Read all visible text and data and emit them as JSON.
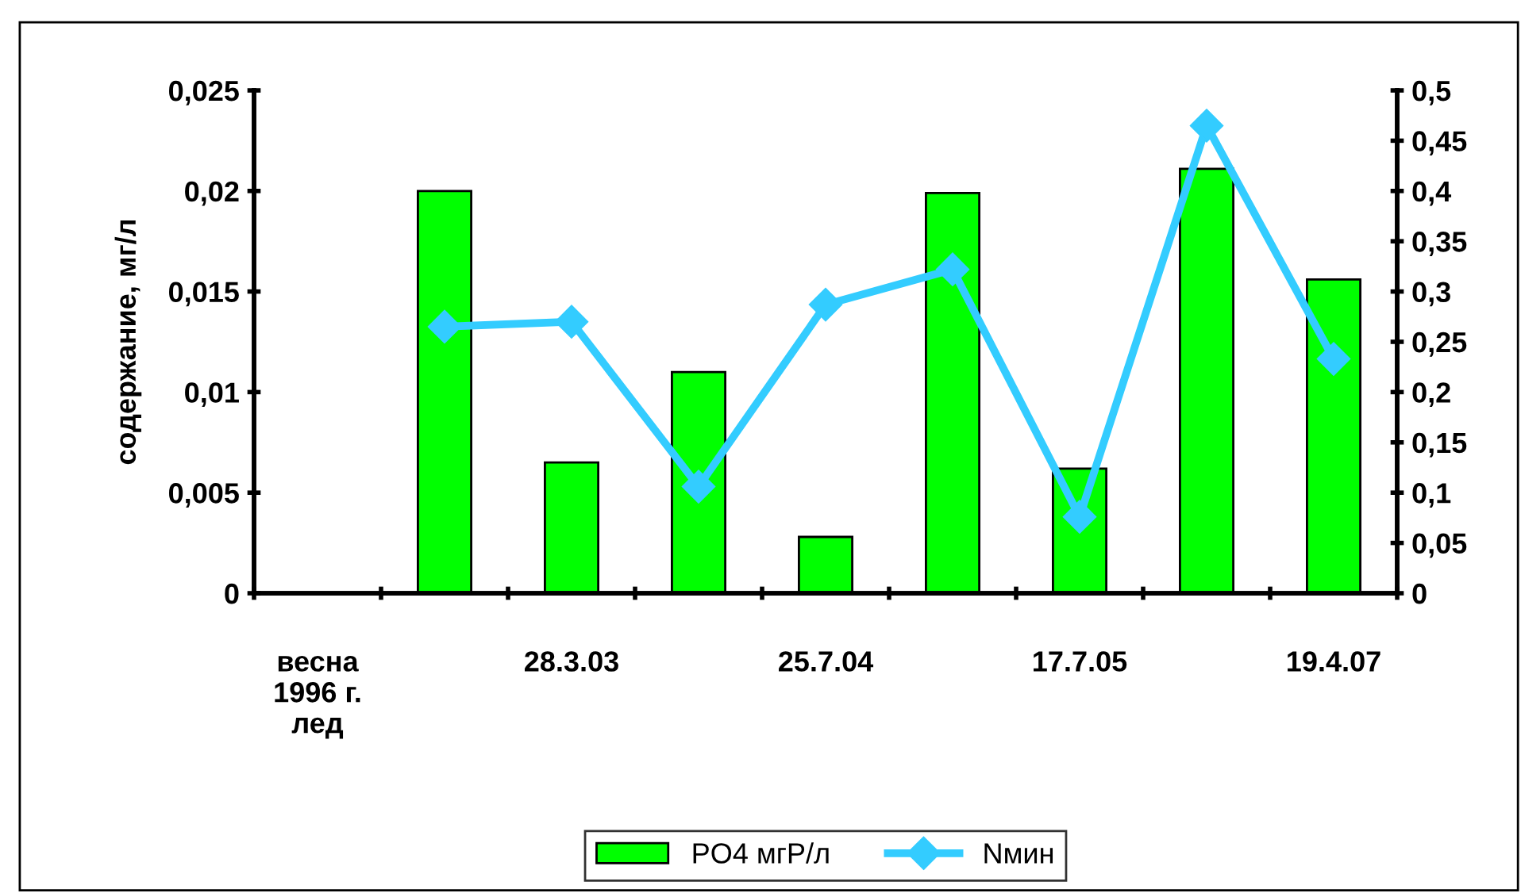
{
  "chart_data": {
    "type": "bar",
    "ylabel": "содержание, мг/л",
    "categories": [
      "весна\n1996 г.\nлед",
      null,
      "28.3.03",
      null,
      "25.7.04",
      null,
      "17.7.05",
      null,
      "19.4.07"
    ],
    "series": [
      {
        "name": "PO4 мгР/л",
        "color": "#00ff00",
        "values": [
          null,
          0.02,
          0.0065,
          0.011,
          0.0028,
          0.0199,
          0.0062,
          0.0211,
          0.0156
        ]
      },
      {
        "name": "Nмин",
        "type": "line",
        "axis": "y2",
        "color": "#33ccff",
        "values": [
          null,
          0.265,
          0.27,
          0.106,
          0.287,
          0.322,
          0.076,
          0.465,
          0.233
        ]
      }
    ],
    "ylim": [
      0,
      0.025
    ],
    "yticks": [
      {
        "value": 0,
        "label": "0"
      },
      {
        "value": 0.005,
        "label": "0,005"
      },
      {
        "value": 0.01,
        "label": "0,01"
      },
      {
        "value": 0.015,
        "label": "0,015"
      },
      {
        "value": 0.02,
        "label": "0,02"
      },
      {
        "value": 0.025,
        "label": "0,025"
      }
    ],
    "y2lim": [
      0,
      0.5
    ],
    "y2ticks": [
      {
        "value": 0,
        "label": "0"
      },
      {
        "value": 0.05,
        "label": "0,05"
      },
      {
        "value": 0.1,
        "label": "0,1"
      },
      {
        "value": 0.15,
        "label": "0,15"
      },
      {
        "value": 0.2,
        "label": "0,2"
      },
      {
        "value": 0.25,
        "label": "0,25"
      },
      {
        "value": 0.3,
        "label": "0,3"
      },
      {
        "value": 0.35,
        "label": "0,35"
      },
      {
        "value": 0.4,
        "label": "0,4"
      },
      {
        "value": 0.45,
        "label": "0,45"
      },
      {
        "value": 0.5,
        "label": "0,5"
      }
    ],
    "marker": "diamond",
    "grid": false,
    "legend": "bottom"
  }
}
